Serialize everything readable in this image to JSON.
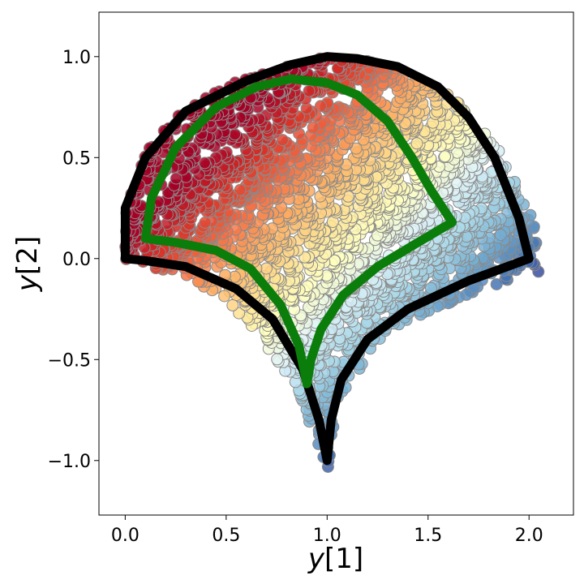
{
  "chart_data": {
    "type": "scatter",
    "title": "",
    "xlabel": "y[1]",
    "ylabel": "y[2]",
    "xlim": [
      -0.13,
      2.22
    ],
    "ylim": [
      -1.27,
      1.22
    ],
    "grid": false,
    "legend": "none",
    "x_ticks": [
      "0.0",
      "0.5",
      "1.0",
      "1.5",
      "2.0"
    ],
    "x_tick_values": [
      0.0,
      0.5,
      1.0,
      1.5,
      2.0
    ],
    "y_ticks": [
      "1.0",
      "0.5",
      "0.0",
      "−0.5",
      "−1.0"
    ],
    "y_tick_values": [
      1.0,
      0.5,
      0.0,
      -0.5,
      -1.0
    ],
    "scatter": {
      "description_colormap": "red-yellow-blue (RdYlBu) mapped along y[1] - y[2]",
      "colors": [
        "#a50026",
        "#d73027",
        "#f46d43",
        "#fdae61",
        "#fee090",
        "#ffffbf",
        "#e0f3f8",
        "#abd9e9",
        "#74add1",
        "#4575b4",
        "#313695"
      ],
      "edge_color": "#8a8a8a",
      "region": {
        "left_boundary": [
          [
            0.0,
            -0.02
          ],
          [
            0.0,
            0.3
          ],
          [
            0.1,
            0.55
          ],
          [
            0.3,
            0.75
          ],
          [
            0.6,
            0.9
          ],
          [
            1.0,
            1.0
          ]
        ],
        "top_boundary": [
          [
            1.0,
            1.0
          ],
          [
            1.3,
            0.97
          ],
          [
            1.6,
            0.83
          ],
          [
            1.85,
            0.55
          ],
          [
            2.0,
            0.25
          ],
          [
            2.1,
            -0.05
          ]
        ],
        "bottom_boundary": [
          [
            0.0,
            -0.02
          ],
          [
            0.3,
            -0.08
          ],
          [
            0.6,
            -0.3
          ],
          [
            0.85,
            -0.65
          ],
          [
            1.0,
            -1.07
          ],
          [
            1.05,
            -0.7
          ],
          [
            1.3,
            -0.35
          ],
          [
            1.7,
            -0.18
          ],
          [
            2.1,
            -0.05
          ]
        ]
      }
    },
    "series": [
      {
        "color": "#000000",
        "curve": [
          [
            0.0,
            0.0
          ],
          [
            0.0,
            0.25
          ],
          [
            0.1,
            0.5
          ],
          [
            0.3,
            0.73
          ],
          [
            0.6,
            0.88
          ],
          [
            0.82,
            0.96
          ],
          [
            1.0,
            1.0
          ],
          [
            1.15,
            0.99
          ],
          [
            1.35,
            0.95
          ],
          [
            1.55,
            0.85
          ],
          [
            1.7,
            0.7
          ],
          [
            1.83,
            0.5
          ],
          [
            1.95,
            0.2
          ],
          [
            2.0,
            0.0
          ],
          [
            1.7,
            -0.11
          ],
          [
            1.4,
            -0.25
          ],
          [
            1.2,
            -0.4
          ],
          [
            1.07,
            -0.6
          ],
          [
            1.02,
            -0.8
          ],
          [
            1.0,
            -1.0
          ],
          [
            0.96,
            -0.8
          ],
          [
            0.88,
            -0.55
          ],
          [
            0.73,
            -0.3
          ],
          [
            0.55,
            -0.15
          ],
          [
            0.3,
            -0.04
          ],
          [
            0.1,
            -0.01
          ],
          [
            0.0,
            0.0
          ]
        ]
      },
      {
        "color": "#0a7d0a",
        "curve": [
          [
            0.1,
            0.1
          ],
          [
            0.13,
            0.3
          ],
          [
            0.25,
            0.55
          ],
          [
            0.45,
            0.75
          ],
          [
            0.65,
            0.85
          ],
          [
            0.82,
            0.89
          ],
          [
            1.0,
            0.87
          ],
          [
            1.15,
            0.81
          ],
          [
            1.3,
            0.68
          ],
          [
            1.42,
            0.5
          ],
          [
            1.52,
            0.33
          ],
          [
            1.62,
            0.18
          ],
          [
            1.45,
            0.08
          ],
          [
            1.25,
            -0.04
          ],
          [
            1.08,
            -0.18
          ],
          [
            0.97,
            -0.35
          ],
          [
            0.92,
            -0.5
          ],
          [
            0.9,
            -0.62
          ],
          [
            0.86,
            -0.43
          ],
          [
            0.77,
            -0.23
          ],
          [
            0.62,
            -0.05
          ],
          [
            0.45,
            0.04
          ],
          [
            0.25,
            0.08
          ],
          [
            0.1,
            0.1
          ]
        ]
      }
    ]
  }
}
